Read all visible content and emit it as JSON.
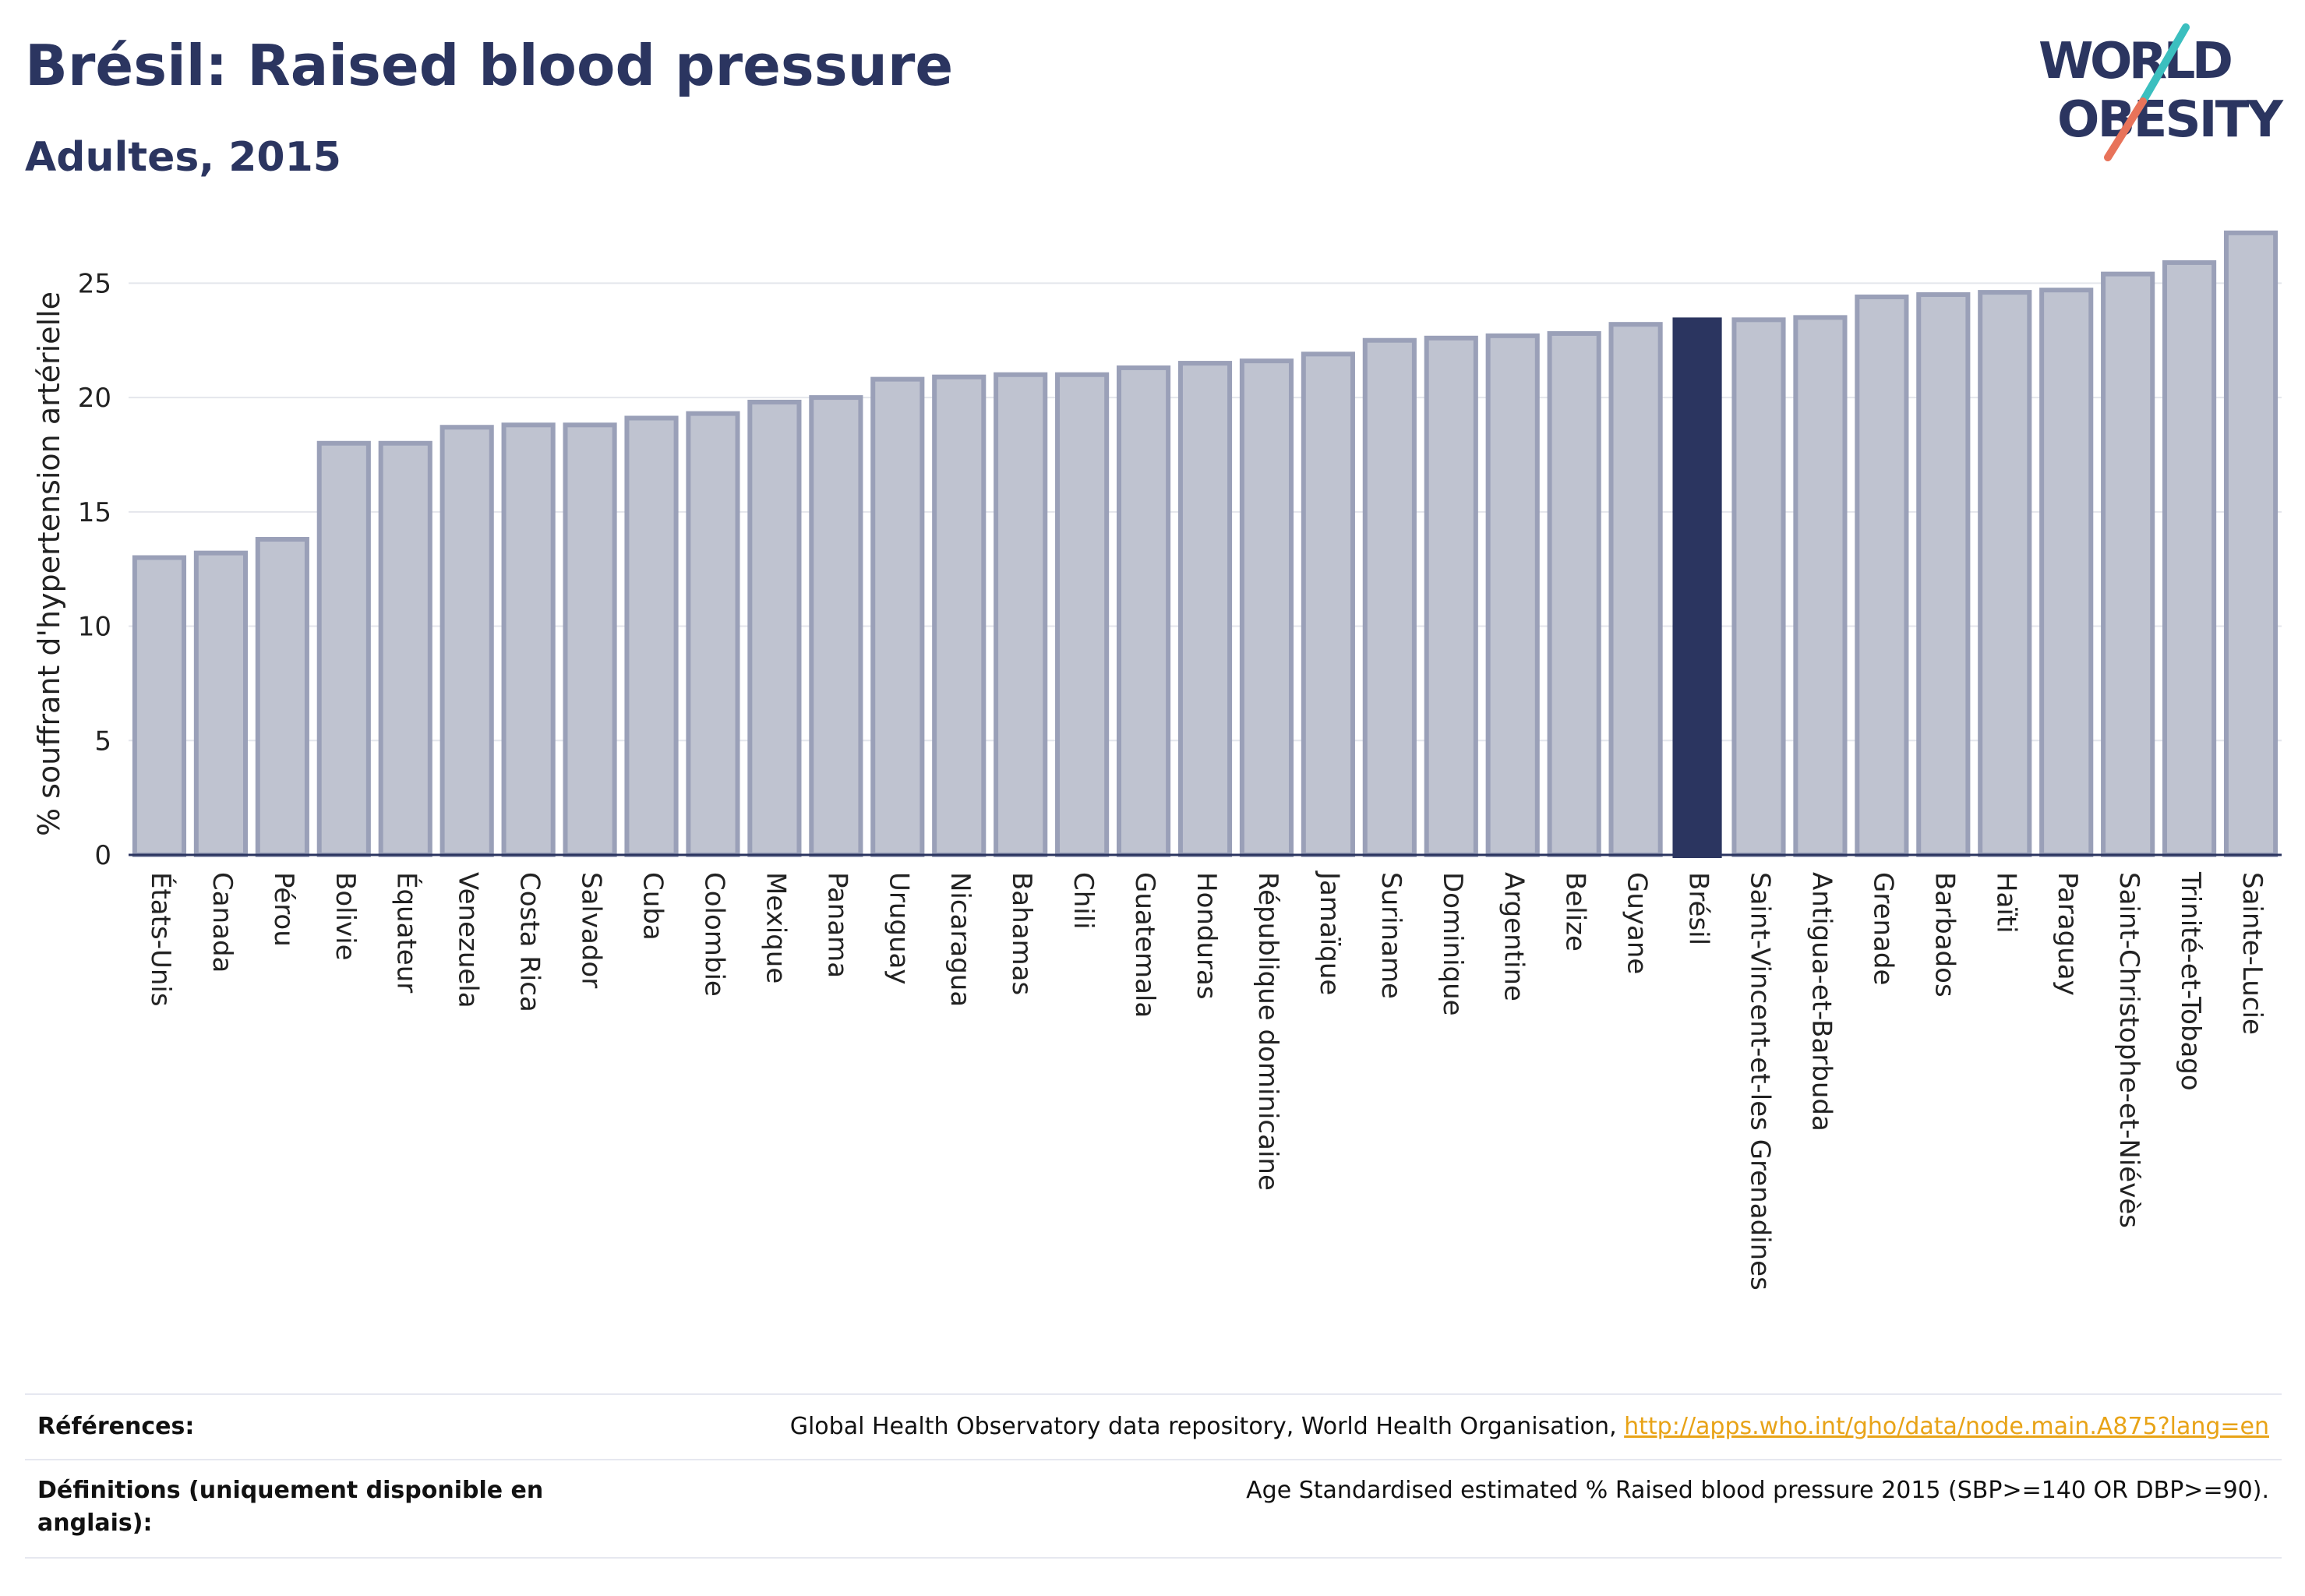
{
  "header": {
    "title": "Brésil: Raised blood pressure",
    "subtitle": "Adultes, 2015"
  },
  "logo": {
    "line1": "WORLD",
    "line2": "OBESITY",
    "colors": {
      "text": "#2b3560",
      "slash_teal": "#3bbfbf",
      "slash_coral": "#e8735a"
    }
  },
  "colors": {
    "bar_fill": "#bfc3d0",
    "bar_stroke": "#9aa0b8",
    "highlight_fill": "#2b3560",
    "axis": "#2b3560",
    "grid": "#e4e6ec"
  },
  "chart_data": {
    "type": "bar",
    "ylabel": "% souffrant d'hypertension artérielle",
    "xlabel": "",
    "ylim": [
      0,
      27.5
    ],
    "yticks": [
      0,
      5,
      10,
      15,
      20,
      25
    ],
    "grid": true,
    "highlight": "Brésil",
    "categories": [
      "États-Unis",
      "Canada",
      "Pérou",
      "Bolivie",
      "Équateur",
      "Venezuela",
      "Costa Rica",
      "Salvador",
      "Cuba",
      "Colombie",
      "Mexique",
      "Panama",
      "Uruguay",
      "Nicaragua",
      "Bahamas",
      "Chili",
      "Guatemala",
      "Honduras",
      "République dominicaine",
      "Jamaïque",
      "Suriname",
      "Dominique",
      "Argentine",
      "Belize",
      "Guyane",
      "Brésil",
      "Saint-Vincent-et-les Grenadines",
      "Antigua-et-Barbuda",
      "Grenade",
      "Barbados",
      "Haïti",
      "Paraguay",
      "Saint-Christophe-et-Niévès",
      "Trinité-et-Tobago",
      "Sainte-Lucie"
    ],
    "values": [
      13.0,
      13.2,
      13.8,
      18.0,
      18.0,
      18.7,
      18.8,
      18.8,
      19.1,
      19.3,
      19.8,
      20.0,
      20.8,
      20.9,
      21.0,
      21.0,
      21.3,
      21.5,
      21.6,
      21.9,
      22.5,
      22.6,
      22.7,
      22.8,
      23.2,
      23.5,
      23.4,
      23.5,
      24.4,
      24.5,
      24.6,
      24.7,
      25.4,
      25.9,
      27.2
    ]
  },
  "footer": {
    "references_label": "Références:",
    "references_text": "Global Health Observatory data repository, World Health Organisation, ",
    "references_link": "http://apps.who.int/gho/data/node.main.A875?lang=en",
    "definitions_label": "Définitions (uniquement disponible en anglais):",
    "definitions_text": "Age Standardised estimated % Raised blood pressure 2015 (SBP>=140 OR DBP>=90)."
  }
}
